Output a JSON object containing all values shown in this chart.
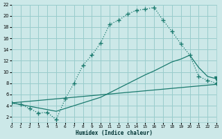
{
  "xlabel": "Humidex (Indice chaleur)",
  "bg_color": "#cce8e8",
  "grid_color": "#99cccc",
  "line_color": "#1a7a6e",
  "xlim": [
    0,
    23
  ],
  "ylim": [
    1,
    22
  ],
  "xticks": [
    0,
    1,
    2,
    3,
    4,
    5,
    6,
    7,
    8,
    9,
    10,
    11,
    12,
    13,
    14,
    15,
    16,
    17,
    18,
    19,
    20,
    21,
    22,
    23
  ],
  "yticks": [
    2,
    4,
    6,
    8,
    10,
    12,
    14,
    16,
    18,
    20,
    22
  ],
  "curve1_x": [
    0,
    1,
    2,
    3,
    4,
    5,
    6,
    7,
    8,
    9,
    10,
    11,
    12,
    13,
    14,
    15,
    16,
    17,
    18,
    19,
    20,
    21,
    22,
    23
  ],
  "curve1_y": [
    4.5,
    4.2,
    3.5,
    2.7,
    2.8,
    1.5,
    5.2,
    8.0,
    11.2,
    13.0,
    15.2,
    18.5,
    19.2,
    20.3,
    21.0,
    21.2,
    21.5,
    19.2,
    17.2,
    15.0,
    13.0,
    9.2,
    8.5,
    8.0
  ],
  "curve2_x": [
    0,
    23
  ],
  "curve2_y": [
    4.5,
    7.8
  ],
  "curve3_x": [
    0,
    5,
    10,
    15,
    16,
    17,
    18,
    19,
    20,
    21,
    22,
    23
  ],
  "curve3_y": [
    4.5,
    3.0,
    5.5,
    9.5,
    10.2,
    11.0,
    11.8,
    12.3,
    13.0,
    10.8,
    9.2,
    8.8
  ],
  "curve3_marker_x": [
    23
  ],
  "curve3_marker_y": [
    8.8
  ]
}
